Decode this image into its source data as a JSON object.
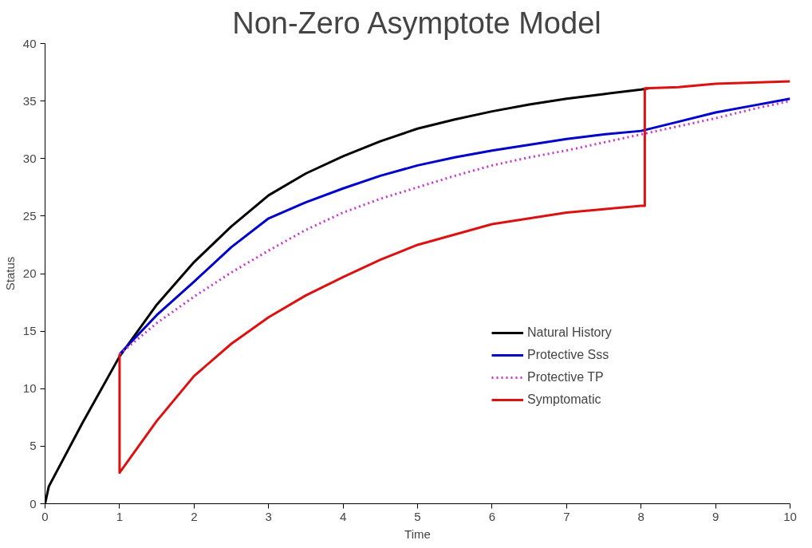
{
  "chart_data": {
    "type": "line",
    "title": "Non-Zero Asymptote Model",
    "xlabel": "Time",
    "ylabel": "Status",
    "xlim": [
      0,
      10
    ],
    "ylim": [
      0,
      40
    ],
    "xticks": [
      0,
      1,
      2,
      3,
      4,
      5,
      6,
      7,
      8,
      9,
      10
    ],
    "yticks": [
      0,
      5,
      10,
      15,
      20,
      25,
      30,
      35,
      40
    ],
    "grid": false,
    "legend": "right",
    "marker": "none",
    "series": [
      {
        "name": "Natural History",
        "color": "#000000",
        "line_style": "solid",
        "x": [
          0,
          0.05,
          0.5,
          1,
          1.5,
          2,
          2.5,
          3,
          3.5,
          4,
          4.5,
          5,
          5.5,
          6,
          6.5,
          7,
          7.5,
          8,
          8.1
        ],
        "values": [
          0,
          1.5,
          7,
          12.8,
          17.3,
          21.0,
          24.1,
          26.8,
          28.7,
          30.2,
          31.5,
          32.6,
          33.4,
          34.1,
          34.7,
          35.2,
          35.6,
          36.0,
          36.1
        ]
      },
      {
        "name": "Protective Sss",
        "color": "#0000cc",
        "line_style": "solid",
        "x": [
          1,
          1.5,
          2,
          2.5,
          3,
          3.5,
          4,
          4.5,
          5,
          5.5,
          6,
          6.5,
          7,
          7.5,
          8,
          8.5,
          9,
          9.5,
          10
        ],
        "values": [
          13,
          16.4,
          19.3,
          22.3,
          24.8,
          26.2,
          27.4,
          28.5,
          29.4,
          30.1,
          30.7,
          31.2,
          31.7,
          32.1,
          32.4,
          33.2,
          34.0,
          34.6,
          35.2
        ]
      },
      {
        "name": "Protective TP",
        "color": "#cc33cc",
        "line_style": "dotted",
        "x": [
          1,
          1.5,
          2,
          2.5,
          3,
          3.5,
          4,
          4.5,
          5,
          5.5,
          6,
          6.5,
          7,
          7.5,
          8,
          8.5,
          9,
          9.5,
          10
        ],
        "values": [
          13,
          15.7,
          18.0,
          20.1,
          22.0,
          23.8,
          25.3,
          26.5,
          27.5,
          28.5,
          29.4,
          30.1,
          30.7,
          31.4,
          32.1,
          32.8,
          33.5,
          34.3,
          35.0
        ]
      },
      {
        "name": "Symptomatic",
        "color": "#dd1111",
        "line_style": "solid",
        "x": [
          1,
          1,
          1.5,
          2,
          2.5,
          3,
          3.5,
          4,
          4.5,
          5,
          5.5,
          6,
          6.5,
          7,
          7.5,
          8,
          8.05,
          8.05,
          8.5,
          9,
          9.5,
          10
        ],
        "values": [
          13,
          2.7,
          7.2,
          11.1,
          13.9,
          16.2,
          18.1,
          19.7,
          21.2,
          22.5,
          23.4,
          24.3,
          24.8,
          25.3,
          25.6,
          25.9,
          25.9,
          36.1,
          36.2,
          36.5,
          36.6,
          36.7
        ]
      }
    ]
  }
}
